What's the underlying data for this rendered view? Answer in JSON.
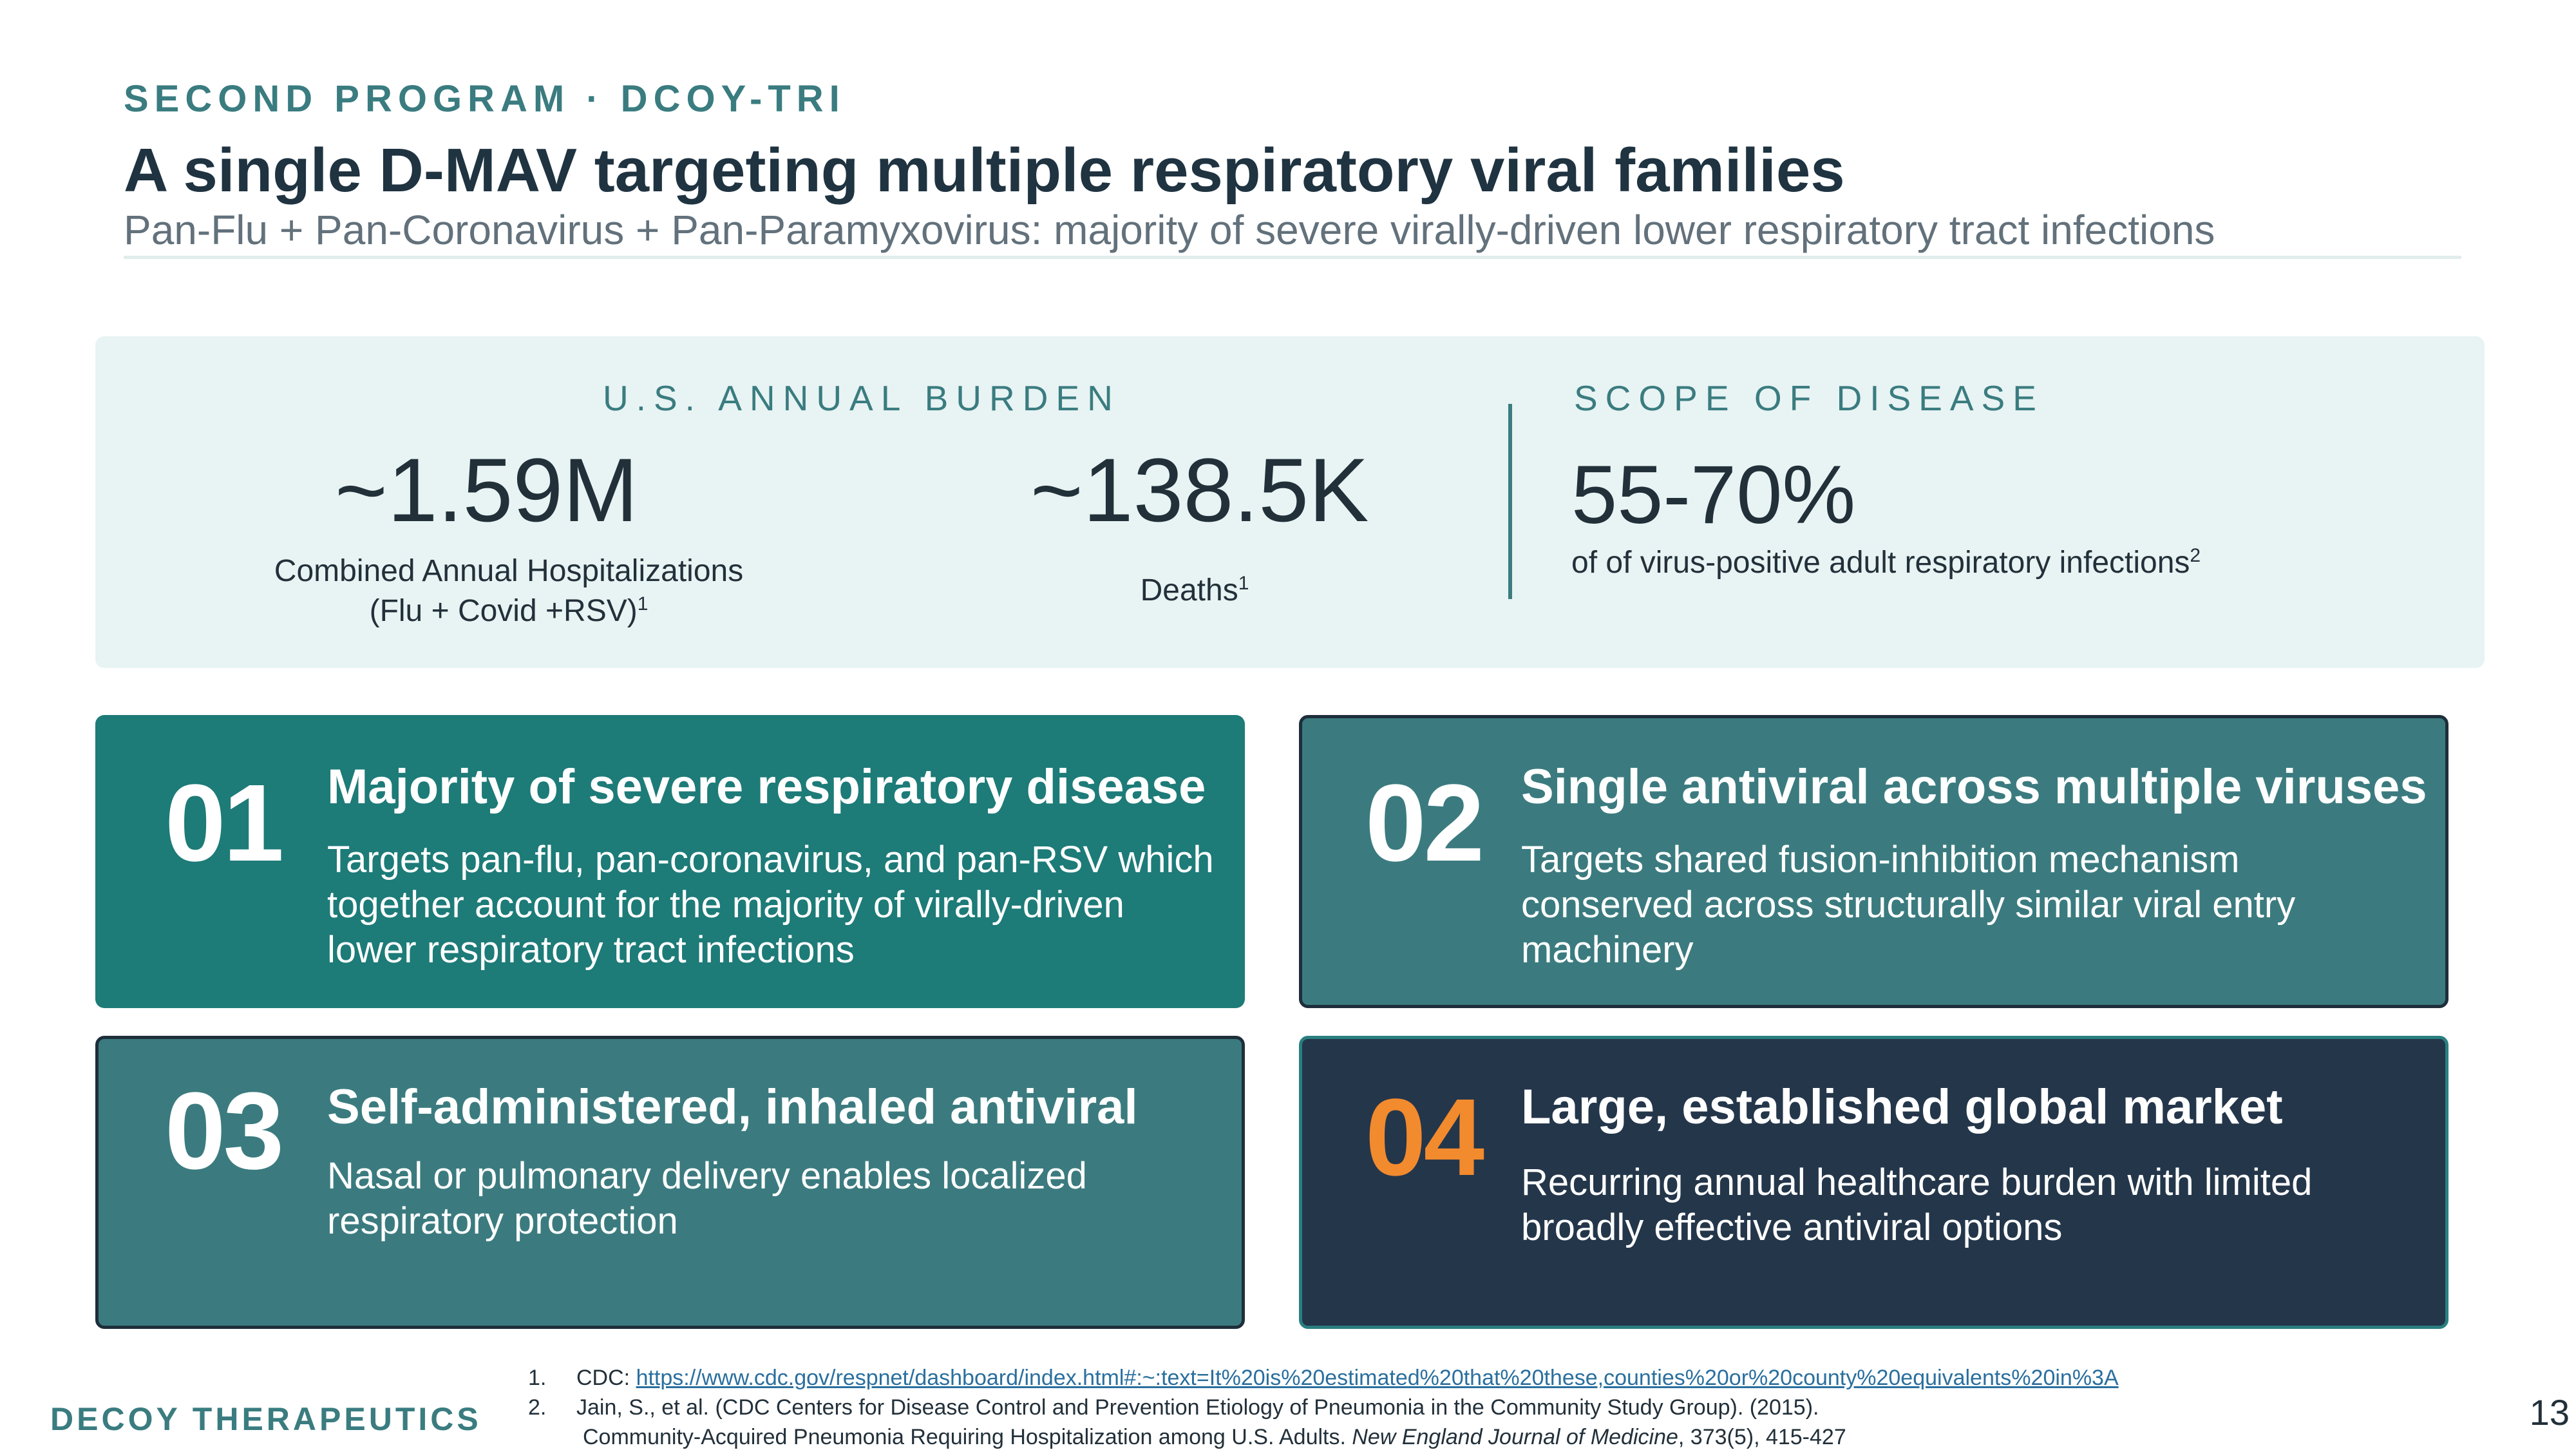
{
  "header": {
    "eyebrow": "SECOND PROGRAM · DCOY-TRI",
    "title": "A single D-MAV targeting multiple respiratory viral families",
    "subtitle": "Pan-Flu + Pan-Coronavirus + Pan-Paramyxovirus: majority of severe virally-driven lower respiratory tract infections"
  },
  "burden": {
    "header": "U.S. ANNUAL BURDEN",
    "stat1": {
      "value": "~1.59M",
      "caption_line1": "Combined Annual Hospitalizations",
      "caption_line2": "(Flu + Covid +RSV)",
      "sup": "1"
    },
    "stat2": {
      "value": "~138.5K",
      "caption": "Deaths",
      "sup": "1"
    }
  },
  "scope": {
    "header": "SCOPE OF DISEASE",
    "value": "55-70%",
    "caption": "of of virus-positive adult respiratory infections",
    "sup": "2"
  },
  "cards": [
    {
      "number": "01",
      "title": "Majority of severe respiratory disease",
      "body": "Targets pan-flu, pan-coronavirus, and pan-RSV which together account for the majority of virally-driven lower respiratory tract infections"
    },
    {
      "number": "02",
      "title": "Single antiviral across multiple viruses",
      "body": "Targets shared fusion-inhibition mechanism conserved across structurally similar viral entry machinery"
    },
    {
      "number": "03",
      "title": "Self-administered, inhaled antiviral",
      "body": "Nasal or pulmonary delivery enables localized respiratory protection"
    },
    {
      "number": "04",
      "title": "Large, established global market",
      "body": "Recurring annual healthcare burden with limited broadly effective antiviral options"
    }
  ],
  "colors": {
    "card1_bg": "#1d7b78",
    "card2_bg": "#3b7b7f",
    "card3_bg": "#3b7b7f",
    "card4_bg": "#24364a",
    "accent_orange": "#f28a2e",
    "teal_text": "#3a7c80"
  },
  "footer": {
    "brand": "DECOY THERAPEUTICS",
    "page_number": "13",
    "footnotes": [
      {
        "num": "1.",
        "prefix": "CDC: ",
        "link": "https://www.cdc.gov/respnet/dashboard/index.html#:~:text=It%20is%20estimated%20that%20these,counties%20or%20county%20equivalents%20in%3A"
      },
      {
        "num": "2.",
        "line1": "Jain, S., et al. (CDC Centers for Disease Control and Prevention Etiology of Pneumonia in the Community Study Group). (2015).",
        "line2_pre": "Community-Acquired Pneumonia Requiring Hospitalization among U.S. Adults. ",
        "line2_journal": "New England Journal of Medicine",
        "line2_post": ", 373(5), 415-427"
      }
    ]
  }
}
